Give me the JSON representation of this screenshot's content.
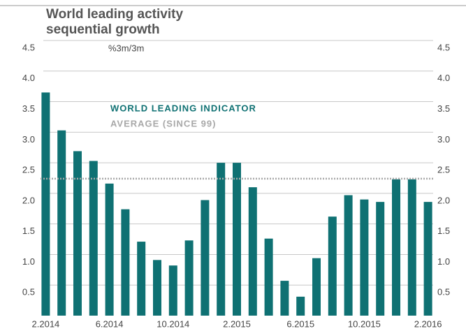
{
  "chart_data": {
    "type": "bar",
    "title": "World leading activity sequential growth",
    "subtitle": "%3m/3m",
    "categories": [
      "2.2014",
      null,
      null,
      null,
      "6.2014",
      null,
      null,
      null,
      "10.2014",
      null,
      null,
      null,
      "2.2015",
      null,
      null,
      null,
      "6.2015",
      null,
      null,
      null,
      "10.2015",
      null,
      null,
      null,
      "2.2016"
    ],
    "series": [
      {
        "name": "WORLD LEADING INDICATOR",
        "color": "#0f7173",
        "values": [
          3.65,
          3.03,
          2.69,
          2.53,
          2.16,
          1.74,
          1.21,
          0.91,
          0.82,
          1.23,
          1.89,
          2.5,
          2.5,
          2.1,
          1.26,
          0.57,
          0.31,
          0.94,
          1.62,
          1.97,
          1.9,
          1.86,
          2.23,
          2.23,
          1.86
        ]
      }
    ],
    "average": {
      "name": "AVERAGE (SINCE 99)",
      "color": "#a8a8a8",
      "value": 2.24
    },
    "ylim": [
      0,
      4.5
    ],
    "yticks": [
      {
        "value": 0.5,
        "label": "0.5"
      },
      {
        "value": 1,
        "label": "1.0"
      },
      {
        "value": 1.5,
        "label": "1.5"
      },
      {
        "value": 2,
        "label": "2.0"
      },
      {
        "value": 2.5,
        "label": "2.5"
      },
      {
        "value": 3,
        "label": "3.0"
      },
      {
        "value": 3.5,
        "label": "3.5"
      },
      {
        "value": 4,
        "label": "4.0"
      },
      {
        "value": 4.5,
        "label": "4.5"
      }
    ],
    "grid": true
  }
}
